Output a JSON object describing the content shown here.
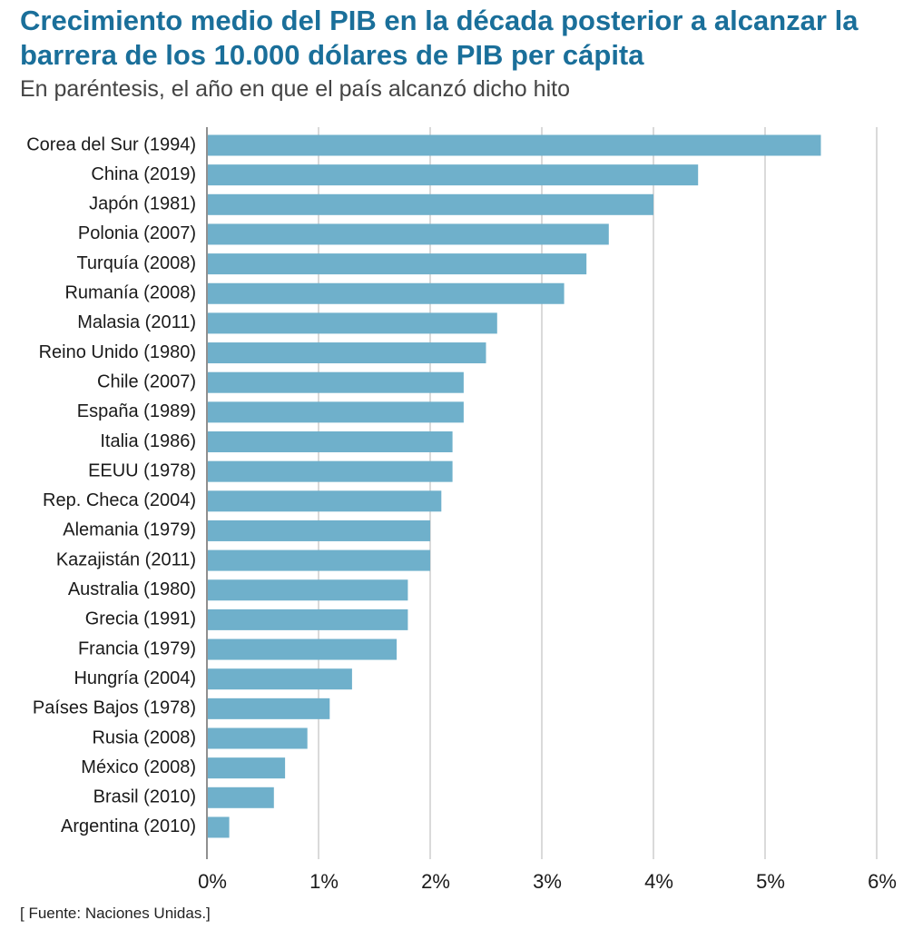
{
  "header": {
    "title": "Crecimiento medio del PIB en la década posterior a alcanzar la barrera de los 10.000 dólares de PIB per cápita",
    "subtitle": "En paréntesis, el año en que el país alcanzó dicho hito"
  },
  "footer": {
    "source": "[ Fuente: Naciones Unidas.]"
  },
  "colors": {
    "bar": "#6fb0cb",
    "grid": "#b5b5b5",
    "title": "#1a6f9a"
  },
  "chart_data": {
    "type": "bar",
    "orientation": "horizontal",
    "categories": [
      "Corea del Sur (1994)",
      "China (2019)",
      "Japón (1981)",
      "Polonia (2007)",
      "Turquía (2008)",
      "Rumanía (2008)",
      "Malasia (2011)",
      "Reino Unido (1980)",
      "Chile (2007)",
      "España (1989)",
      "Italia (1986)",
      "EEUU (1978)",
      "Rep. Checa (2004)",
      "Alemania (1979)",
      "Kazajistán (2011)",
      "Australia (1980)",
      "Grecia (1991)",
      "Francia (1979)",
      "Hungría (2004)",
      "Países Bajos (1978)",
      "Rusia (2008)",
      "México (2008)",
      "Brasil (2010)",
      "Argentina (2010)"
    ],
    "values": [
      5.5,
      4.4,
      4.0,
      3.6,
      3.4,
      3.2,
      2.6,
      2.5,
      2.3,
      2.3,
      2.2,
      2.2,
      2.1,
      2.0,
      2.0,
      1.8,
      1.8,
      1.7,
      1.3,
      1.1,
      0.9,
      0.7,
      0.6,
      0.2
    ],
    "xlim": [
      0,
      6
    ],
    "xticks": [
      "0%",
      "1%",
      "2%",
      "3%",
      "4%",
      "5%",
      "6%"
    ],
    "grid": true,
    "xlabel": "",
    "ylabel": ""
  }
}
